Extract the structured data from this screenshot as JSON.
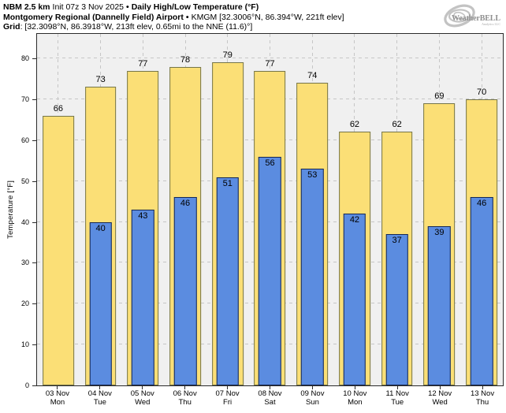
{
  "header": {
    "line1": {
      "model": "NBM 2.5 km",
      "init": "Init 07z 3 Nov 2025",
      "sep": "•",
      "product": "Daily High/Low Temperature (°F)"
    },
    "line2": {
      "station": "Montgomery Regional (Dannelly Field) Airport",
      "sep": "•",
      "details": "KMGM [32.3006°N, 86.394°W, 221ft elev]"
    },
    "line3": {
      "label": "Grid",
      "details": ": [32.3098°N, 86.3918°W, 213ft elev, 0.65mi to the NNE (11.6)°]"
    }
  },
  "logo": {
    "brand": "WeatherBELL",
    "sub": "Analytics LLC"
  },
  "chart_data": {
    "type": "bar",
    "title": "Daily High/Low Temperature (°F)",
    "xlabel": "",
    "ylabel": "Temperature [°F]",
    "ylim": [
      0,
      86
    ],
    "yticks": [
      0,
      10,
      20,
      30,
      40,
      50,
      60,
      70,
      80
    ],
    "grid": true,
    "legend_position": "none",
    "plot_background": "#f0f0f0",
    "grid_color": "#c6c6c6",
    "frame_color": "#2b2b2b",
    "categories": [
      {
        "date": "03 Nov",
        "day": "Mon"
      },
      {
        "date": "04 Nov",
        "day": "Tue"
      },
      {
        "date": "05 Nov",
        "day": "Wed"
      },
      {
        "date": "06 Nov",
        "day": "Thu"
      },
      {
        "date": "07 Nov",
        "day": "Fri"
      },
      {
        "date": "08 Nov",
        "day": "Sat"
      },
      {
        "date": "09 Nov",
        "day": "Sun"
      },
      {
        "date": "10 Nov",
        "day": "Mon"
      },
      {
        "date": "11 Nov",
        "day": "Tue"
      },
      {
        "date": "12 Nov",
        "day": "Wed"
      },
      {
        "date": "13 Nov",
        "day": "Thu"
      }
    ],
    "series": [
      {
        "name": "Daily High",
        "color": "#fbdf76",
        "border_color": "#75754a",
        "values": [
          66,
          73,
          77,
          78,
          79,
          77,
          74,
          62,
          62,
          69,
          70
        ]
      },
      {
        "name": "Daily Low",
        "color": "#5b8ce0",
        "border_color": "#182952",
        "values": [
          null,
          40,
          43,
          46,
          51,
          56,
          53,
          42,
          37,
          39,
          46
        ]
      }
    ]
  }
}
